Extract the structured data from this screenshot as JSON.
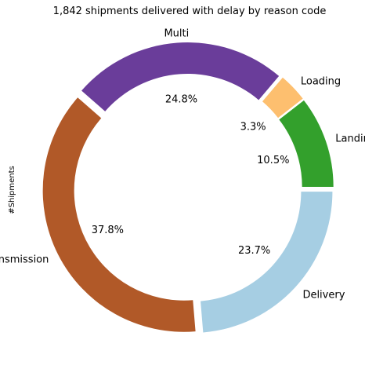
{
  "chart_data": {
    "type": "pie",
    "style": "donut",
    "title": "1,842 shipments delivered with delay by reason code",
    "ylabel": "#Shipments",
    "slices": [
      {
        "label": "Delivery",
        "percent": 23.7,
        "percent_label": "23.7%",
        "color": "#a6cee3"
      },
      {
        "label": "Transmission",
        "percent": 37.8,
        "percent_label": "37.8%",
        "color": "#b15928"
      },
      {
        "label": "Multi",
        "percent": 24.8,
        "percent_label": "24.8%",
        "color": "#6a3d9a"
      },
      {
        "label": "Loading",
        "percent": 3.3,
        "percent_label": "3.3%",
        "color": "#fdbf6f"
      },
      {
        "label": "Landing",
        "percent": 10.5,
        "percent_label": "10.5%",
        "color": "#33a02c"
      }
    ],
    "start_angle_deg": 0,
    "direction": "clockwise",
    "exploded": true
  }
}
